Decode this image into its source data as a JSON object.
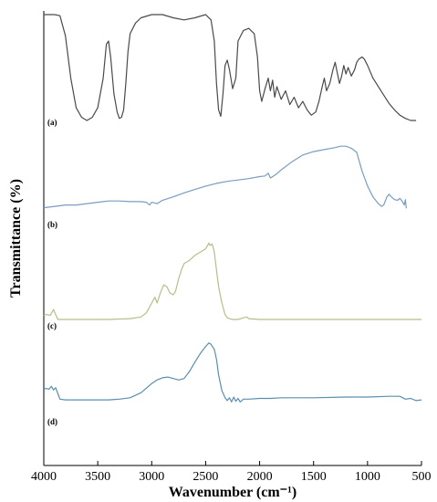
{
  "chart_data": {
    "type": "line",
    "xlabel": "Wavenumber (cm⁻¹)",
    "ylabel": "Transmittance (%)",
    "xlim": [
      4000,
      500
    ],
    "xaxis_reversed": true,
    "xticks": [
      4000,
      3500,
      3000,
      2500,
      2000,
      1500,
      1000,
      500
    ],
    "y_ticks_shown": false,
    "grid": false,
    "legend": "none",
    "series": [
      {
        "name": "(a)",
        "color": "#4a4a4a",
        "points": [
          [
            4000,
            1.0
          ],
          [
            3900,
            1.0
          ],
          [
            3850,
            0.99
          ],
          [
            3800,
            0.8
          ],
          [
            3750,
            0.4
          ],
          [
            3700,
            0.12
          ],
          [
            3650,
            0.03
          ],
          [
            3600,
            0.0
          ],
          [
            3550,
            0.03
          ],
          [
            3500,
            0.12
          ],
          [
            3450,
            0.4
          ],
          [
            3420,
            0.72
          ],
          [
            3400,
            0.75
          ],
          [
            3380,
            0.6
          ],
          [
            3350,
            0.25
          ],
          [
            3320,
            0.08
          ],
          [
            3300,
            0.02
          ],
          [
            3280,
            0.03
          ],
          [
            3260,
            0.1
          ],
          [
            3240,
            0.35
          ],
          [
            3220,
            0.65
          ],
          [
            3200,
            0.82
          ],
          [
            3150,
            0.92
          ],
          [
            3100,
            0.97
          ],
          [
            3000,
            1.0
          ],
          [
            2900,
            1.0
          ],
          [
            2800,
            0.97
          ],
          [
            2700,
            0.95
          ],
          [
            2600,
            0.97
          ],
          [
            2500,
            1.0
          ],
          [
            2450,
            0.95
          ],
          [
            2420,
            0.75
          ],
          [
            2400,
            0.35
          ],
          [
            2380,
            0.1
          ],
          [
            2360,
            0.04
          ],
          [
            2340,
            0.25
          ],
          [
            2320,
            0.52
          ],
          [
            2300,
            0.57
          ],
          [
            2280,
            0.48
          ],
          [
            2250,
            0.3
          ],
          [
            2220,
            0.4
          ],
          [
            2200,
            0.75
          ],
          [
            2150,
            0.85
          ],
          [
            2100,
            0.87
          ],
          [
            2050,
            0.82
          ],
          [
            2020,
            0.6
          ],
          [
            2000,
            0.28
          ],
          [
            1980,
            0.18
          ],
          [
            1950,
            0.3
          ],
          [
            1920,
            0.4
          ],
          [
            1900,
            0.28
          ],
          [
            1880,
            0.38
          ],
          [
            1860,
            0.22
          ],
          [
            1840,
            0.32
          ],
          [
            1800,
            0.2
          ],
          [
            1760,
            0.28
          ],
          [
            1720,
            0.15
          ],
          [
            1680,
            0.22
          ],
          [
            1640,
            0.12
          ],
          [
            1600,
            0.18
          ],
          [
            1560,
            0.1
          ],
          [
            1520,
            0.05
          ],
          [
            1480,
            0.08
          ],
          [
            1450,
            0.18
          ],
          [
            1420,
            0.32
          ],
          [
            1400,
            0.4
          ],
          [
            1380,
            0.28
          ],
          [
            1350,
            0.35
          ],
          [
            1320,
            0.48
          ],
          [
            1300,
            0.55
          ],
          [
            1280,
            0.45
          ],
          [
            1260,
            0.35
          ],
          [
            1240,
            0.42
          ],
          [
            1220,
            0.52
          ],
          [
            1200,
            0.44
          ],
          [
            1180,
            0.5
          ],
          [
            1150,
            0.42
          ],
          [
            1120,
            0.48
          ],
          [
            1100,
            0.55
          ],
          [
            1080,
            0.58
          ],
          [
            1050,
            0.6
          ],
          [
            1030,
            0.58
          ],
          [
            1000,
            0.52
          ],
          [
            950,
            0.4
          ],
          [
            900,
            0.32
          ],
          [
            850,
            0.24
          ],
          [
            800,
            0.16
          ],
          [
            750,
            0.1
          ],
          [
            700,
            0.05
          ],
          [
            650,
            0.02
          ],
          [
            600,
            0.0
          ],
          [
            550,
            0.0
          ]
        ]
      },
      {
        "name": "(b)",
        "color": "#7a9cc0",
        "points": [
          [
            4000,
            0.06
          ],
          [
            3900,
            0.08
          ],
          [
            3800,
            0.1
          ],
          [
            3700,
            0.1
          ],
          [
            3600,
            0.12
          ],
          [
            3500,
            0.14
          ],
          [
            3400,
            0.16
          ],
          [
            3300,
            0.16
          ],
          [
            3200,
            0.15
          ],
          [
            3100,
            0.15
          ],
          [
            3050,
            0.14
          ],
          [
            3020,
            0.1
          ],
          [
            3000,
            0.14
          ],
          [
            2950,
            0.12
          ],
          [
            2900,
            0.17
          ],
          [
            2800,
            0.22
          ],
          [
            2700,
            0.28
          ],
          [
            2600,
            0.33
          ],
          [
            2500,
            0.38
          ],
          [
            2400,
            0.42
          ],
          [
            2300,
            0.45
          ],
          [
            2200,
            0.47
          ],
          [
            2100,
            0.49
          ],
          [
            2000,
            0.52
          ],
          [
            1950,
            0.53
          ],
          [
            1920,
            0.57
          ],
          [
            1900,
            0.5
          ],
          [
            1880,
            0.52
          ],
          [
            1850,
            0.55
          ],
          [
            1800,
            0.62
          ],
          [
            1700,
            0.74
          ],
          [
            1600,
            0.84
          ],
          [
            1500,
            0.89
          ],
          [
            1400,
            0.92
          ],
          [
            1300,
            0.95
          ],
          [
            1250,
            0.97
          ],
          [
            1200,
            0.97
          ],
          [
            1150,
            0.94
          ],
          [
            1100,
            0.88
          ],
          [
            1050,
            0.6
          ],
          [
            1000,
            0.38
          ],
          [
            950,
            0.22
          ],
          [
            900,
            0.12
          ],
          [
            870,
            0.08
          ],
          [
            850,
            0.1
          ],
          [
            820,
            0.22
          ],
          [
            800,
            0.26
          ],
          [
            780,
            0.22
          ],
          [
            750,
            0.18
          ],
          [
            720,
            0.17
          ],
          [
            700,
            0.2
          ],
          [
            680,
            0.16
          ],
          [
            660,
            0.1
          ],
          [
            650,
            0.18
          ],
          [
            640,
            0.05
          ]
        ]
      },
      {
        "name": "(c)",
        "color": "#b8bd8a",
        "points": [
          [
            4000,
            0.05
          ],
          [
            3970,
            0.06
          ],
          [
            3940,
            0.05
          ],
          [
            3910,
            0.12
          ],
          [
            3890,
            0.06
          ],
          [
            3870,
            0.0
          ],
          [
            3850,
            0.0
          ],
          [
            3800,
            0.0
          ],
          [
            3600,
            0.0
          ],
          [
            3400,
            0.0
          ],
          [
            3200,
            0.01
          ],
          [
            3100,
            0.03
          ],
          [
            3050,
            0.08
          ],
          [
            3000,
            0.2
          ],
          [
            2970,
            0.27
          ],
          [
            2950,
            0.2
          ],
          [
            2920,
            0.32
          ],
          [
            2890,
            0.42
          ],
          [
            2860,
            0.4
          ],
          [
            2830,
            0.32
          ],
          [
            2800,
            0.3
          ],
          [
            2780,
            0.34
          ],
          [
            2750,
            0.5
          ],
          [
            2720,
            0.62
          ],
          [
            2700,
            0.68
          ],
          [
            2650,
            0.72
          ],
          [
            2600,
            0.78
          ],
          [
            2550,
            0.82
          ],
          [
            2500,
            0.86
          ],
          [
            2470,
            0.93
          ],
          [
            2460,
            0.9
          ],
          [
            2440,
            0.92
          ],
          [
            2420,
            0.82
          ],
          [
            2400,
            0.6
          ],
          [
            2380,
            0.4
          ],
          [
            2350,
            0.2
          ],
          [
            2320,
            0.06
          ],
          [
            2300,
            0.02
          ],
          [
            2280,
            0.01
          ],
          [
            2250,
            0.0
          ],
          [
            2200,
            0.0
          ],
          [
            2150,
            0.02
          ],
          [
            2120,
            0.03
          ],
          [
            2100,
            0.01
          ],
          [
            2000,
            0.0
          ],
          [
            1900,
            0.0
          ],
          [
            1700,
            0.0
          ],
          [
            1500,
            0.0
          ],
          [
            1000,
            0.0
          ],
          [
            500,
            0.0
          ]
        ]
      },
      {
        "name": "(d)",
        "color": "#5a8fb0",
        "points": [
          [
            4000,
            0.2
          ],
          [
            3980,
            0.21
          ],
          [
            3950,
            0.2
          ],
          [
            3930,
            0.24
          ],
          [
            3910,
            0.19
          ],
          [
            3890,
            0.22
          ],
          [
            3870,
            0.14
          ],
          [
            3850,
            0.06
          ],
          [
            3800,
            0.05
          ],
          [
            3700,
            0.05
          ],
          [
            3600,
            0.05
          ],
          [
            3500,
            0.05
          ],
          [
            3400,
            0.05
          ],
          [
            3300,
            0.06
          ],
          [
            3200,
            0.08
          ],
          [
            3100,
            0.15
          ],
          [
            3000,
            0.28
          ],
          [
            2950,
            0.33
          ],
          [
            2900,
            0.36
          ],
          [
            2850,
            0.37
          ],
          [
            2800,
            0.35
          ],
          [
            2750,
            0.33
          ],
          [
            2700,
            0.35
          ],
          [
            2650,
            0.45
          ],
          [
            2600,
            0.58
          ],
          [
            2550,
            0.7
          ],
          [
            2500,
            0.8
          ],
          [
            2470,
            0.85
          ],
          [
            2450,
            0.83
          ],
          [
            2420,
            0.76
          ],
          [
            2400,
            0.62
          ],
          [
            2380,
            0.4
          ],
          [
            2350,
            0.18
          ],
          [
            2320,
            0.08
          ],
          [
            2300,
            0.04
          ],
          [
            2280,
            0.08
          ],
          [
            2260,
            0.02
          ],
          [
            2240,
            0.09
          ],
          [
            2220,
            0.03
          ],
          [
            2200,
            0.07
          ],
          [
            2180,
            0.02
          ],
          [
            2150,
            0.06
          ],
          [
            2100,
            0.06
          ],
          [
            2000,
            0.07
          ],
          [
            1900,
            0.07
          ],
          [
            1800,
            0.08
          ],
          [
            1500,
            0.08
          ],
          [
            1200,
            0.09
          ],
          [
            1000,
            0.09
          ],
          [
            800,
            0.1
          ],
          [
            700,
            0.1
          ],
          [
            650,
            0.06
          ],
          [
            600,
            0.07
          ],
          [
            550,
            0.04
          ],
          [
            500,
            0.05
          ]
        ]
      }
    ]
  },
  "panel_labels": {
    "a": "(a)",
    "b": "(b)",
    "c": "(c)",
    "d": "(d)"
  }
}
